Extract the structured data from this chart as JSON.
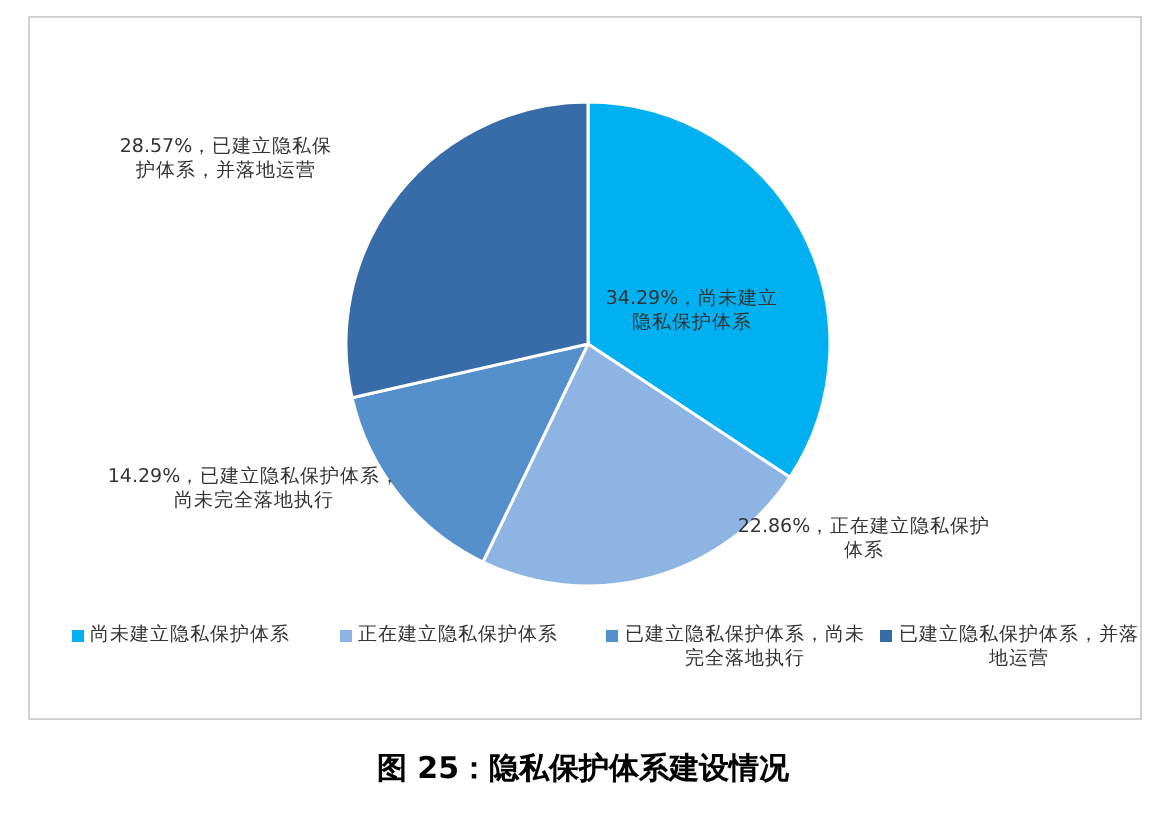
{
  "chart_data": {
    "type": "pie",
    "title": "图 25：隐私保护体系建设情况",
    "categories": [
      "尚未建立隐私保护体系",
      "正在建立隐私保护体系",
      "已建立隐私保护体系，尚未完全落地执行",
      "已建立隐私保护体系，并落地运营"
    ],
    "values": [
      34.29,
      22.86,
      14.29,
      28.57
    ],
    "colors": [
      "#00b0f0",
      "#8eb4e3",
      "#5590cc",
      "#376ca8"
    ],
    "value_labels": [
      "34.29%，尚未建立隐私保护体系",
      "22.86%，正在建立隐私保护体系",
      "14.29%，已建立隐私保护体系，尚未完全落地执行",
      "28.57%，已建立隐私保护体系，并落地运营"
    ],
    "legend": "bottom"
  }
}
